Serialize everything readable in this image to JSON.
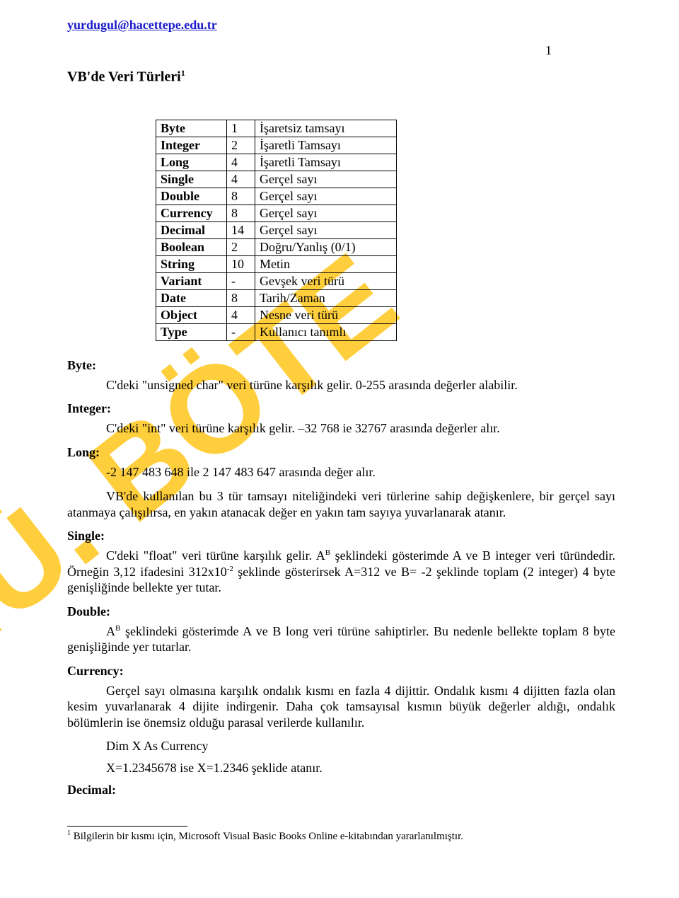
{
  "header": {
    "email_link": "yurdugul@hacettepe.edu.tr",
    "page_number": "1"
  },
  "title": {
    "text": "VB'de Veri Türleri",
    "sup": "1"
  },
  "types_table": {
    "rows": [
      {
        "name": "Byte",
        "size": "1",
        "desc": "İşaretsiz tamsayı"
      },
      {
        "name": "Integer",
        "size": "2",
        "desc": "İşaretli Tamsayı"
      },
      {
        "name": "Long",
        "size": "4",
        "desc": "İşaretli Tamsayı"
      },
      {
        "name": "Single",
        "size": "4",
        "desc": "Gerçel sayı"
      },
      {
        "name": "Double",
        "size": "8",
        "desc": "Gerçel sayı"
      },
      {
        "name": "Currency",
        "size": "8",
        "desc": "Gerçel sayı"
      },
      {
        "name": "Decimal",
        "size": "14",
        "desc": "Gerçel sayı"
      },
      {
        "name": "Boolean",
        "size": "2",
        "desc": "Doğru/Yanlış (0/1)"
      },
      {
        "name": "String",
        "size": "10",
        "desc": "Metin"
      },
      {
        "name": "Variant",
        "size": "-",
        "desc": "Gevşek veri türü"
      },
      {
        "name": "Date",
        "size": "8",
        "desc": "Tarih/Zaman"
      },
      {
        "name": "Object",
        "size": "4",
        "desc": "Nesne veri türü"
      },
      {
        "name": "Type",
        "size": "-",
        "desc": "Kullanıcı tanımlı"
      }
    ]
  },
  "sections": {
    "byte": {
      "label": "Byte:",
      "text": "C'deki \"unsigned char\" veri türüne karşılık gelir. 0-255 arasında değerler alabilir."
    },
    "integer": {
      "label": "Integer:",
      "text": "C'deki \"int\" veri türüne karşılık gelir. –32 768 ie 32767 arasında değerler alır."
    },
    "long": {
      "label": "Long:",
      "line1": "-2 147 483 648 ile 2 147 483 647 arasında değer alır.",
      "line2": "VB'de kullanılan bu 3 tür tamsayı niteliğindeki veri türlerine sahip değişkenlere, bir gerçel sayı atanmaya çalışılırsa, en yakın atanacak değer en yakın tam sayıya yuvarlanarak atanır."
    },
    "single": {
      "label": "Single:",
      "pre": "C'deki \"float\" veri türüne karşılık gelir. A",
      "exp1": "B",
      "mid1": " şeklindeki gösterimde A ve B integer veri türündedir. Örneğin 3,12 ifadesini 312x10",
      "exp2": "-2",
      "post": " şeklinde gösterirsek A=312 ve B= -2 şeklinde toplam (2 integer) 4 byte genişliğinde bellekte yer tutar."
    },
    "double": {
      "label": "Double:",
      "pre": "A",
      "exp": "B",
      "post": " şeklindeki gösterimde A ve B long veri türüne sahiptirler. Bu nedenle bellekte toplam 8 byte genişliğinde yer tutarlar."
    },
    "currency": {
      "label": "Currency:",
      "text": "Gerçel sayı olmasına karşılık ondalık kısmı en fazla 4 dijittir. Ondalık kısmı 4 dijitten fazla olan kesim yuvarlanarak 4 dijite indirgenir. Daha çok tamsayısal kısmın büyük değerler aldığı, ondalık bölümlerin ise önemsiz olduğu parasal verilerde kullanılır.",
      "code1": "Dim X As Currency",
      "code2": "X=1.2345678 ise X=1.2346 şeklide atanır."
    },
    "decimal": {
      "label": "Decimal:"
    }
  },
  "footnote": {
    "marker": "1",
    "text": " Bilgilerin bir kısmı için, Microsoft Visual Basic Books Online e-kitabından yararlanılmıştır."
  },
  "watermark": {
    "text": "H.Ü. BÖTE",
    "fill": "#ffc107",
    "font_size": 175,
    "font_weight": "900"
  }
}
